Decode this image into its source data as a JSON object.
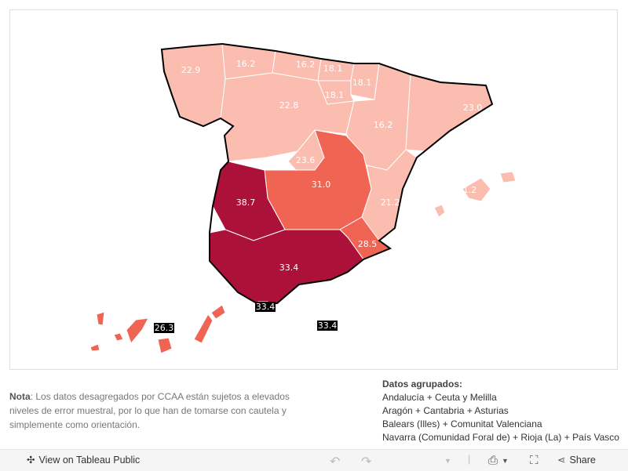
{
  "map": {
    "colors": {
      "low": "#fcbdb1",
      "mid": "#ef6452",
      "high": "#ab1139",
      "border": "#000000"
    },
    "regions": [
      {
        "name": "Galicia",
        "value": "22.9",
        "level": "low"
      },
      {
        "name": "Asturias",
        "value": "16.2",
        "level": "low"
      },
      {
        "name": "Cantabria",
        "value": "16.2",
        "level": "low"
      },
      {
        "name": "País Vasco",
        "value": "18.1",
        "level": "low"
      },
      {
        "name": "Navarra",
        "value": "18.1",
        "level": "low"
      },
      {
        "name": "La Rioja",
        "value": "18.1",
        "level": "low"
      },
      {
        "name": "Castilla y León",
        "value": "22.8",
        "level": "low"
      },
      {
        "name": "Aragón",
        "value": "16.2",
        "level": "low"
      },
      {
        "name": "Cataluña",
        "value": "23.0",
        "level": "low"
      },
      {
        "name": "Madrid",
        "value": "23.6",
        "level": "low"
      },
      {
        "name": "Castilla-La Mancha",
        "value": "31.0",
        "level": "mid"
      },
      {
        "name": "Extremadura",
        "value": "38.7",
        "level": "high"
      },
      {
        "name": "Comunitat Valenciana",
        "value": "21.2",
        "level": "low"
      },
      {
        "name": "Murcia",
        "value": "28.5",
        "level": "mid"
      },
      {
        "name": "Andalucía",
        "value": "33.4",
        "level": "high"
      },
      {
        "name": "Balears",
        "value": "21.2",
        "level": "low"
      },
      {
        "name": "Canarias",
        "value": "26.3",
        "level": "mid"
      },
      {
        "name": "Ceuta",
        "value": "33.4",
        "level": "high"
      },
      {
        "name": "Melilla",
        "value": "33.4",
        "level": "high"
      }
    ]
  },
  "note": {
    "bold": "Nota",
    "text": ": Los datos desagregados por CCAA están sujetos a elevados niveles de error muestral, por lo que han de tomarse con cautela y simplemente como orientación."
  },
  "grouped": {
    "title": "Datos agrupados:",
    "items": [
      "Andalucía + Ceuta y Melilla",
      "Aragón + Cantabria + Asturias",
      "Balears (Illes) + Comunitat Valenciana",
      "Navarra (Comunidad Foral de) + Rioja (La) + País Vasco"
    ]
  },
  "toolbar": {
    "view_label": "View on Tableau Public",
    "share_label": "Share"
  }
}
